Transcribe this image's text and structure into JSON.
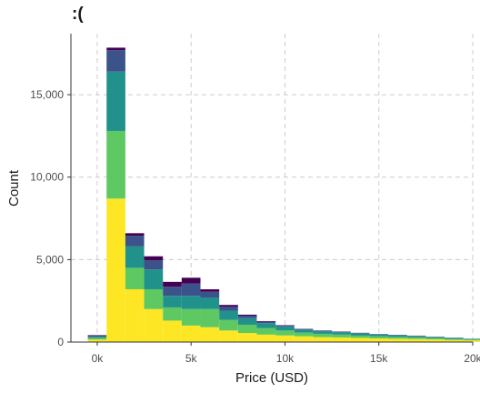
{
  "chart_data": {
    "type": "bar",
    "stacked": true,
    "title": ":(",
    "xlabel": "Price (USD)",
    "ylabel": "Count",
    "xlim": [
      -1400,
      20000
    ],
    "ylim": [
      0,
      18700
    ],
    "grid": true,
    "x_ticks": [
      0,
      5000,
      10000,
      15000,
      20000
    ],
    "x_tick_labels": [
      "0k",
      "5k",
      "10k",
      "15k",
      "20k"
    ],
    "y_ticks": [
      0,
      5000,
      10000,
      15000
    ],
    "y_tick_labels": [
      "0",
      "5,000",
      "10,000",
      "15,000"
    ],
    "bin_start": -500,
    "bin_width": 1000,
    "colors": [
      "#fde725",
      "#5ec962",
      "#21918c",
      "#3b528b",
      "#440154"
    ],
    "series": [
      {
        "values": [
          150,
          8700,
          3200,
          2000,
          1300,
          1000,
          900,
          700,
          550,
          450,
          400,
          350,
          300,
          280,
          250,
          220,
          200,
          180,
          160,
          130,
          100,
          60
        ]
      },
      {
        "values": [
          100,
          4100,
          1300,
          1200,
          800,
          1000,
          1100,
          650,
          500,
          400,
          300,
          220,
          200,
          170,
          140,
          130,
          110,
          100,
          80,
          60,
          50,
          30
        ]
      },
      {
        "values": [
          70,
          3600,
          1300,
          1200,
          700,
          800,
          700,
          550,
          400,
          300,
          250,
          180,
          170,
          150,
          140,
          110,
          100,
          90,
          70,
          60,
          40,
          20
        ]
      },
      {
        "values": [
          70,
          1300,
          650,
          550,
          550,
          750,
          350,
          250,
          150,
          80,
          60,
          40,
          30,
          30,
          20,
          20,
          20,
          15,
          10,
          10,
          5,
          5
        ]
      },
      {
        "values": [
          30,
          150,
          150,
          250,
          300,
          350,
          150,
          100,
          60,
          40,
          20,
          15,
          10,
          10,
          10,
          10,
          10,
          5,
          5,
          5,
          5,
          5
        ]
      }
    ]
  }
}
